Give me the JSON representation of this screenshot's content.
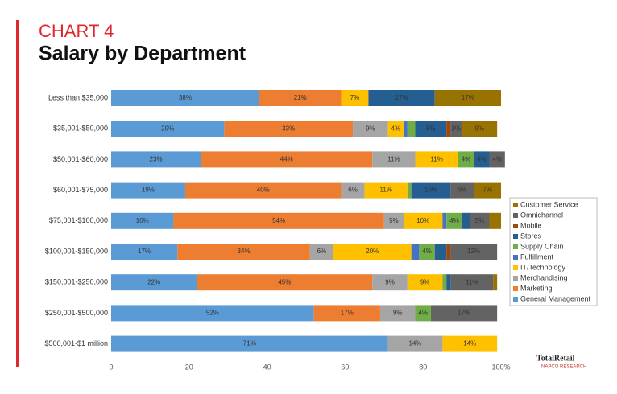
{
  "chart_data": {
    "type": "stacked-bar-horizontal",
    "kicker": "CHART 4",
    "title": "Salary by Department",
    "logo": "TotalRetail",
    "logo_sub": "NAPCO RESEARCH",
    "categories": [
      "Less than $35,000",
      "$35,001-$50,000",
      "$50,001-$60,000",
      "$60,001-$75,000",
      "$75,001-$100,000",
      "$100,001-$150,000",
      "$150,001-$250,000",
      "$250,001-$500,000",
      "$500,001-$1 million"
    ],
    "series": [
      {
        "name": "General Management",
        "color": "#5b9bd5",
        "values": [
          38,
          29,
          23,
          19,
          16,
          17,
          22,
          52,
          71
        ],
        "value_labels": [
          "38%",
          "29%",
          "23%",
          "19%",
          "16%",
          "17%",
          "22%",
          "52%",
          "71%"
        ]
      },
      {
        "name": "Marketing",
        "color": "#ed7d31",
        "values": [
          21,
          33,
          44,
          40,
          54,
          34,
          45,
          17,
          0
        ],
        "value_labels": [
          "21%",
          "33%",
          "44%",
          "40%",
          "54%",
          "34%",
          "45%",
          "17%",
          null
        ]
      },
      {
        "name": "Merchandising",
        "color": "#a5a5a5",
        "values": [
          0,
          9,
          11,
          6,
          5,
          6,
          9,
          9,
          14
        ],
        "value_labels": [
          null,
          "9%",
          "11%",
          "6%",
          "5%",
          "6%",
          "9%",
          "9%",
          "14%"
        ]
      },
      {
        "name": "IT/Technology",
        "color": "#ffc000",
        "values": [
          7,
          4,
          11,
          11,
          10,
          20,
          9,
          0,
          14
        ],
        "value_labels": [
          "7%",
          "4%",
          "11%",
          "11%",
          "10%",
          "20%",
          "9%",
          null,
          "14%"
        ]
      },
      {
        "name": "Fulfillment",
        "color": "#4472c4",
        "values": [
          0,
          1,
          0,
          0,
          1,
          2,
          0,
          0,
          0
        ],
        "value_labels": [
          null,
          null,
          null,
          null,
          null,
          null,
          null,
          null,
          null
        ]
      },
      {
        "name": "Supply Chain",
        "color": "#70ad47",
        "values": [
          0,
          2,
          4,
          1,
          4,
          4,
          1,
          4,
          0
        ],
        "value_labels": [
          null,
          null,
          "4%",
          null,
          "4%",
          "4%",
          null,
          "4%",
          null
        ]
      },
      {
        "name": "Stores",
        "color": "#255e91",
        "values": [
          17,
          8,
          4,
          10,
          2,
          3,
          1,
          0,
          0
        ],
        "value_labels": [
          "17%",
          "8%",
          "4%",
          "10%",
          null,
          null,
          null,
          null,
          null
        ]
      },
      {
        "name": "Mobile",
        "color": "#9e480e",
        "values": [
          0,
          1,
          0,
          0,
          0,
          1,
          0,
          0,
          0
        ],
        "value_labels": [
          null,
          null,
          null,
          null,
          null,
          null,
          null,
          null,
          null
        ]
      },
      {
        "name": "Omnichannel",
        "color": "#636363",
        "values": [
          0,
          3,
          4,
          6,
          5,
          12,
          11,
          17,
          0
        ],
        "value_labels": [
          null,
          "3%",
          "4%",
          "6%",
          "5%",
          "12%",
          "11%",
          "17%",
          null
        ]
      },
      {
        "name": "Customer Service",
        "color": "#997300",
        "values": [
          17,
          9,
          0,
          7,
          3,
          0,
          1,
          0,
          0
        ],
        "value_labels": [
          "17%",
          "9%",
          null,
          "7%",
          null,
          null,
          null,
          null,
          null
        ]
      }
    ],
    "xlim": [
      0,
      100
    ],
    "xticks": [
      0,
      20,
      40,
      60,
      80,
      {
        "value": 100,
        "label": "100%"
      }
    ]
  }
}
